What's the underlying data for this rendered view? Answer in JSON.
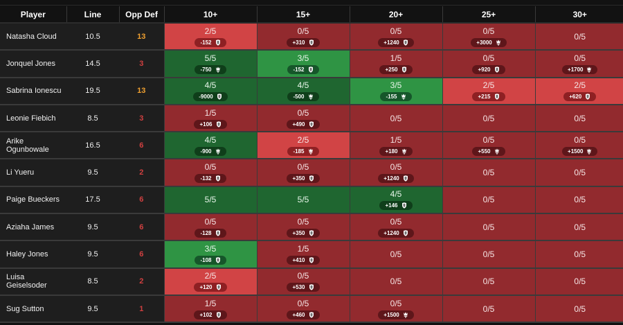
{
  "colors": {
    "dark_red": "#922a2e",
    "red": "#d14445",
    "dark_green": "#1f6630",
    "green": "#2f9444",
    "opp_def_orange": "#f0a030",
    "opp_def_red": "#d04040"
  },
  "table": {
    "headers": [
      "Player",
      "Line",
      "Opp Def",
      "10+",
      "15+",
      "20+",
      "25+",
      "30+"
    ],
    "rows": [
      {
        "player": "Natasha Cloud",
        "line": "10.5",
        "opp_def": "13",
        "opp_color": "orange",
        "cells": [
          {
            "rate": "2/5",
            "odds": "-152",
            "book": "shield-icon",
            "tone": "red"
          },
          {
            "rate": "0/5",
            "odds": "+310",
            "book": "shield-icon",
            "tone": "darkred"
          },
          {
            "rate": "0/5",
            "odds": "+1240",
            "book": "shield-icon",
            "tone": "darkred"
          },
          {
            "rate": "0/5",
            "odds": "+3000",
            "book": "crown-icon",
            "tone": "darkred"
          },
          {
            "rate": "0/5",
            "odds": null,
            "book": null,
            "tone": "darkred"
          }
        ]
      },
      {
        "player": "Jonquel Jones",
        "line": "14.5",
        "opp_def": "3",
        "opp_color": "red",
        "cells": [
          {
            "rate": "5/5",
            "odds": "-750",
            "book": "crown-icon",
            "tone": "darkgreen"
          },
          {
            "rate": "3/5",
            "odds": "-152",
            "book": "shield-icon",
            "tone": "green"
          },
          {
            "rate": "1/5",
            "odds": "+250",
            "book": "shield-icon",
            "tone": "darkred"
          },
          {
            "rate": "0/5",
            "odds": "+920",
            "book": "shield-icon",
            "tone": "darkred"
          },
          {
            "rate": "0/5",
            "odds": "+1700",
            "book": "crown-icon",
            "tone": "darkred"
          }
        ]
      },
      {
        "player": "Sabrina Ionescu",
        "line": "19.5",
        "opp_def": "13",
        "opp_color": "orange",
        "cells": [
          {
            "rate": "4/5",
            "odds": "-9000",
            "book": "shield-icon",
            "tone": "darkgreen"
          },
          {
            "rate": "4/5",
            "odds": "-500",
            "book": "crown-icon",
            "tone": "darkgreen"
          },
          {
            "rate": "3/5",
            "odds": "-155",
            "book": "crown-icon",
            "tone": "green"
          },
          {
            "rate": "2/5",
            "odds": "+215",
            "book": "shield-icon",
            "tone": "red"
          },
          {
            "rate": "2/5",
            "odds": "+620",
            "book": "shield-icon",
            "tone": "red"
          }
        ]
      },
      {
        "player": "Leonie Fiebich",
        "line": "8.5",
        "opp_def": "3",
        "opp_color": "red",
        "cells": [
          {
            "rate": "1/5",
            "odds": "+106",
            "book": "shield-icon",
            "tone": "darkred"
          },
          {
            "rate": "0/5",
            "odds": "+490",
            "book": "shield-icon",
            "tone": "darkred"
          },
          {
            "rate": "0/5",
            "odds": null,
            "book": null,
            "tone": "darkred"
          },
          {
            "rate": "0/5",
            "odds": null,
            "book": null,
            "tone": "darkred"
          },
          {
            "rate": "0/5",
            "odds": null,
            "book": null,
            "tone": "darkred"
          }
        ]
      },
      {
        "player": "Arike Ogunbowale",
        "line": "16.5",
        "opp_def": "6",
        "opp_color": "red",
        "cells": [
          {
            "rate": "4/5",
            "odds": "-900",
            "book": "crown-icon",
            "tone": "darkgreen"
          },
          {
            "rate": "2/5",
            "odds": "-185",
            "book": "crown-icon",
            "tone": "red"
          },
          {
            "rate": "1/5",
            "odds": "+180",
            "book": "crown-icon",
            "tone": "darkred"
          },
          {
            "rate": "0/5",
            "odds": "+550",
            "book": "crown-icon",
            "tone": "darkred"
          },
          {
            "rate": "0/5",
            "odds": "+1500",
            "book": "crown-icon",
            "tone": "darkred"
          }
        ]
      },
      {
        "player": "Li Yueru",
        "line": "9.5",
        "opp_def": "2",
        "opp_color": "red",
        "cells": [
          {
            "rate": "0/5",
            "odds": "-132",
            "book": "shield-icon",
            "tone": "darkred"
          },
          {
            "rate": "0/5",
            "odds": "+350",
            "book": "shield-icon",
            "tone": "darkred"
          },
          {
            "rate": "0/5",
            "odds": "+1240",
            "book": "shield-icon",
            "tone": "darkred"
          },
          {
            "rate": "0/5",
            "odds": null,
            "book": null,
            "tone": "darkred"
          },
          {
            "rate": "0/5",
            "odds": null,
            "book": null,
            "tone": "darkred"
          }
        ]
      },
      {
        "player": "Paige Bueckers",
        "line": "17.5",
        "opp_def": "6",
        "opp_color": "red",
        "cells": [
          {
            "rate": "5/5",
            "odds": null,
            "book": null,
            "tone": "darkgreen"
          },
          {
            "rate": "5/5",
            "odds": null,
            "book": null,
            "tone": "darkgreen"
          },
          {
            "rate": "4/5",
            "odds": "+146",
            "book": "shield-icon",
            "tone": "darkgreen"
          },
          {
            "rate": "0/5",
            "odds": null,
            "book": null,
            "tone": "darkred"
          },
          {
            "rate": "0/5",
            "odds": null,
            "book": null,
            "tone": "darkred"
          }
        ]
      },
      {
        "player": "Aziaha James",
        "line": "9.5",
        "opp_def": "6",
        "opp_color": "red",
        "cells": [
          {
            "rate": "0/5",
            "odds": "-128",
            "book": "shield-icon",
            "tone": "darkred"
          },
          {
            "rate": "0/5",
            "odds": "+350",
            "book": "shield-icon",
            "tone": "darkred"
          },
          {
            "rate": "0/5",
            "odds": "+1240",
            "book": "shield-icon",
            "tone": "darkred"
          },
          {
            "rate": "0/5",
            "odds": null,
            "book": null,
            "tone": "darkred"
          },
          {
            "rate": "0/5",
            "odds": null,
            "book": null,
            "tone": "darkred"
          }
        ]
      },
      {
        "player": "Haley Jones",
        "line": "9.5",
        "opp_def": "6",
        "opp_color": "red",
        "cells": [
          {
            "rate": "3/5",
            "odds": "-108",
            "book": "shield-icon",
            "tone": "green"
          },
          {
            "rate": "1/5",
            "odds": "+410",
            "book": "shield-icon",
            "tone": "darkred"
          },
          {
            "rate": "0/5",
            "odds": null,
            "book": null,
            "tone": "darkred"
          },
          {
            "rate": "0/5",
            "odds": null,
            "book": null,
            "tone": "darkred"
          },
          {
            "rate": "0/5",
            "odds": null,
            "book": null,
            "tone": "darkred"
          }
        ]
      },
      {
        "player": "Luisa Geiselsoder",
        "line": "8.5",
        "opp_def": "2",
        "opp_color": "red",
        "cells": [
          {
            "rate": "2/5",
            "odds": "+120",
            "book": "shield-icon",
            "tone": "red"
          },
          {
            "rate": "0/5",
            "odds": "+530",
            "book": "shield-icon",
            "tone": "darkred"
          },
          {
            "rate": "0/5",
            "odds": null,
            "book": null,
            "tone": "darkred"
          },
          {
            "rate": "0/5",
            "odds": null,
            "book": null,
            "tone": "darkred"
          },
          {
            "rate": "0/5",
            "odds": null,
            "book": null,
            "tone": "darkred"
          }
        ]
      },
      {
        "player": "Sug Sutton",
        "line": "9.5",
        "opp_def": "1",
        "opp_color": "red",
        "cells": [
          {
            "rate": "1/5",
            "odds": "+102",
            "book": "shield-icon",
            "tone": "darkred"
          },
          {
            "rate": "0/5",
            "odds": "+460",
            "book": "shield-icon",
            "tone": "darkred"
          },
          {
            "rate": "0/5",
            "odds": "+1500",
            "book": "crown-icon",
            "tone": "darkred"
          },
          {
            "rate": "0/5",
            "odds": null,
            "book": null,
            "tone": "darkred"
          },
          {
            "rate": "0/5",
            "odds": null,
            "book": null,
            "tone": "darkred"
          }
        ]
      }
    ]
  }
}
